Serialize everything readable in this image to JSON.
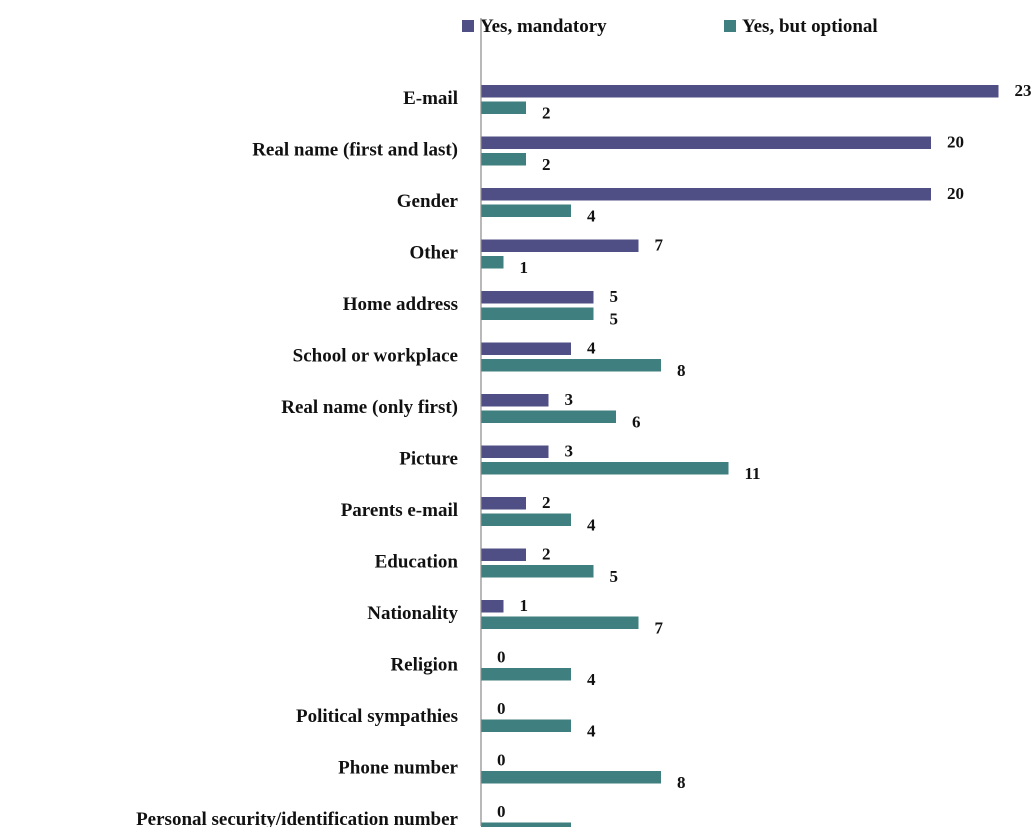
{
  "chart_data": {
    "type": "bar",
    "orientation": "horizontal",
    "categories": [
      "E-mail",
      "Real name (first and last)",
      "Gender",
      "Other",
      "Home address",
      "School or workplace",
      "Real name (only first)",
      "Picture",
      "Parents e-mail",
      "Education",
      "Nationality",
      "Religion",
      "Political sympathies",
      "Phone number",
      "Personal security/identification number"
    ],
    "series": [
      {
        "name": "Yes, mandatory",
        "color": "#4F4F86",
        "values": [
          23,
          20,
          20,
          7,
          5,
          4,
          3,
          3,
          2,
          2,
          1,
          0,
          0,
          0,
          0
        ]
      },
      {
        "name": "Yes, but optional",
        "color": "#3F7F7F",
        "values": [
          2,
          2,
          4,
          1,
          5,
          8,
          6,
          11,
          4,
          5,
          7,
          4,
          4,
          8,
          4
        ]
      }
    ],
    "value_labels": true,
    "grid": false,
    "legend_position": "top",
    "xlim": [
      0,
      23
    ]
  }
}
